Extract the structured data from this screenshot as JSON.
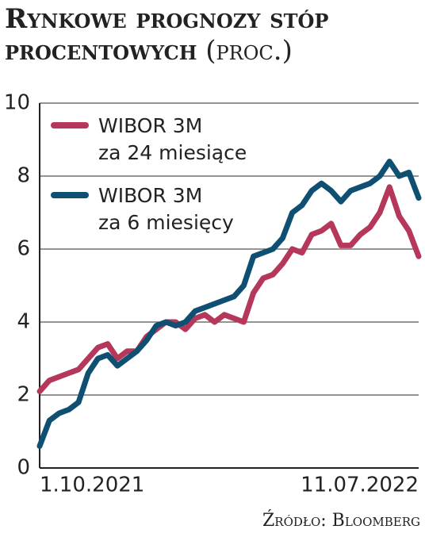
{
  "chart_data": {
    "type": "line",
    "title": "Rynkowe prognozy stóp procentowych",
    "subtitle": "(proc.)",
    "source": "Źródło: Bloomberg",
    "categories": [
      "1.10.2021",
      null,
      null,
      null,
      null,
      null,
      null,
      null,
      null,
      null,
      null,
      null,
      null,
      null,
      null,
      null,
      null,
      null,
      null,
      null,
      null,
      null,
      null,
      null,
      null,
      null,
      null,
      null,
      null,
      null,
      null,
      null,
      null,
      null,
      null,
      null,
      null,
      null,
      null,
      "11.07.2022"
    ],
    "series": [
      {
        "name": "WIBOR 3M\nza 24 miesiące",
        "color": "#b5375a",
        "values": [
          2.1,
          2.4,
          2.5,
          2.6,
          2.7,
          3.0,
          3.3,
          3.4,
          3.0,
          3.2,
          3.2,
          3.6,
          3.8,
          4.0,
          4.0,
          3.8,
          4.1,
          4.2,
          4.0,
          4.2,
          4.1,
          4.0,
          4.8,
          5.2,
          5.3,
          5.6,
          6.0,
          5.9,
          6.4,
          6.5,
          6.7,
          6.1,
          6.1,
          6.4,
          6.6,
          7.0,
          7.7,
          6.9,
          6.5,
          5.8
        ]
      },
      {
        "name": "WIBOR 3M\nza 6 miesięcy",
        "color": "#0e4f72",
        "values": [
          0.6,
          1.3,
          1.5,
          1.6,
          1.8,
          2.6,
          3.0,
          3.1,
          2.8,
          3.0,
          3.2,
          3.5,
          3.9,
          4.0,
          3.9,
          4.0,
          4.3,
          4.4,
          4.5,
          4.6,
          4.7,
          5.0,
          5.8,
          5.9,
          6.0,
          6.3,
          7.0,
          7.2,
          7.6,
          7.8,
          7.6,
          7.3,
          7.6,
          7.7,
          7.8,
          8.0,
          8.4,
          8.0,
          8.1,
          7.4
        ]
      }
    ],
    "ylim": [
      0,
      10
    ],
    "yticks": [
      0,
      2,
      4,
      6,
      8,
      10
    ],
    "grid": true,
    "legend": "top-left"
  }
}
